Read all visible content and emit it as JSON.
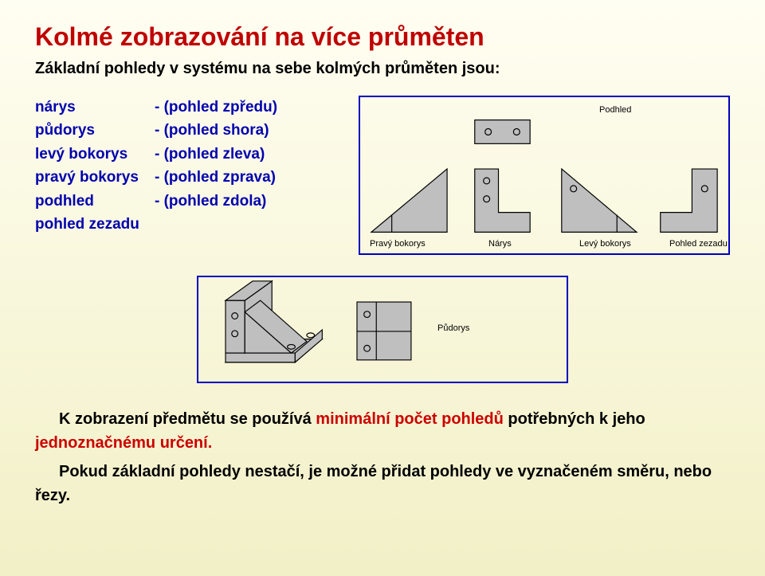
{
  "colors": {
    "slide_bg_top": "#fffef2",
    "slide_bg_bottom": "#f2f0c6",
    "title": "#c00000",
    "text_blue": "#0000b0",
    "text_black": "#000000",
    "panel_border": "#0000c0",
    "panel_border_width": 2,
    "shape_fill": "#bfbfbf",
    "shape_stroke": "#000000",
    "shape_stroke_width": 1.2
  },
  "typography": {
    "title_size": 32,
    "subtitle_size": 20,
    "views_size": 19,
    "diagram_label_size": 11,
    "body_size": 20
  },
  "title": "Kolmé zobrazování na více průměten",
  "subtitle": "Základní pohledy v systému na sebe kolmých průměten jsou:",
  "views": [
    {
      "term": "nárys",
      "desc": "- (pohled zpředu)"
    },
    {
      "term": "půdorys",
      "desc": "- (pohled shora)"
    },
    {
      "term": "levý bokorys",
      "desc": "- (pohled zleva)"
    },
    {
      "term": "pravý bokorys",
      "desc": "- (pohled zprava)"
    },
    {
      "term": "podhled",
      "desc": "- (pohled zdola)"
    },
    {
      "term": "pohled zezadu",
      "desc": ""
    }
  ],
  "diagram_labels": {
    "top": {
      "podhled": "Podhled",
      "pravy_bokorys": "Pravý bokorys",
      "narys": "Nárys",
      "levy_bokorys": "Levý bokorys",
      "pohled_zezadu": "Pohled zezadu"
    },
    "bottom": {
      "pudorys": "Půdorys"
    }
  },
  "bottom_paragraphs": {
    "p1_pre": "K zobrazení předmětu se používá ",
    "p1_hl1": "minimální počet pohledů",
    "p1_mid": " potřebných k jeho ",
    "p1_hl2": "jednoznačnému určení.",
    "p2": "Pokud základní pohledy nestačí, je možné přidat pohledy ve vyznačeném směru, nebo řezy."
  }
}
